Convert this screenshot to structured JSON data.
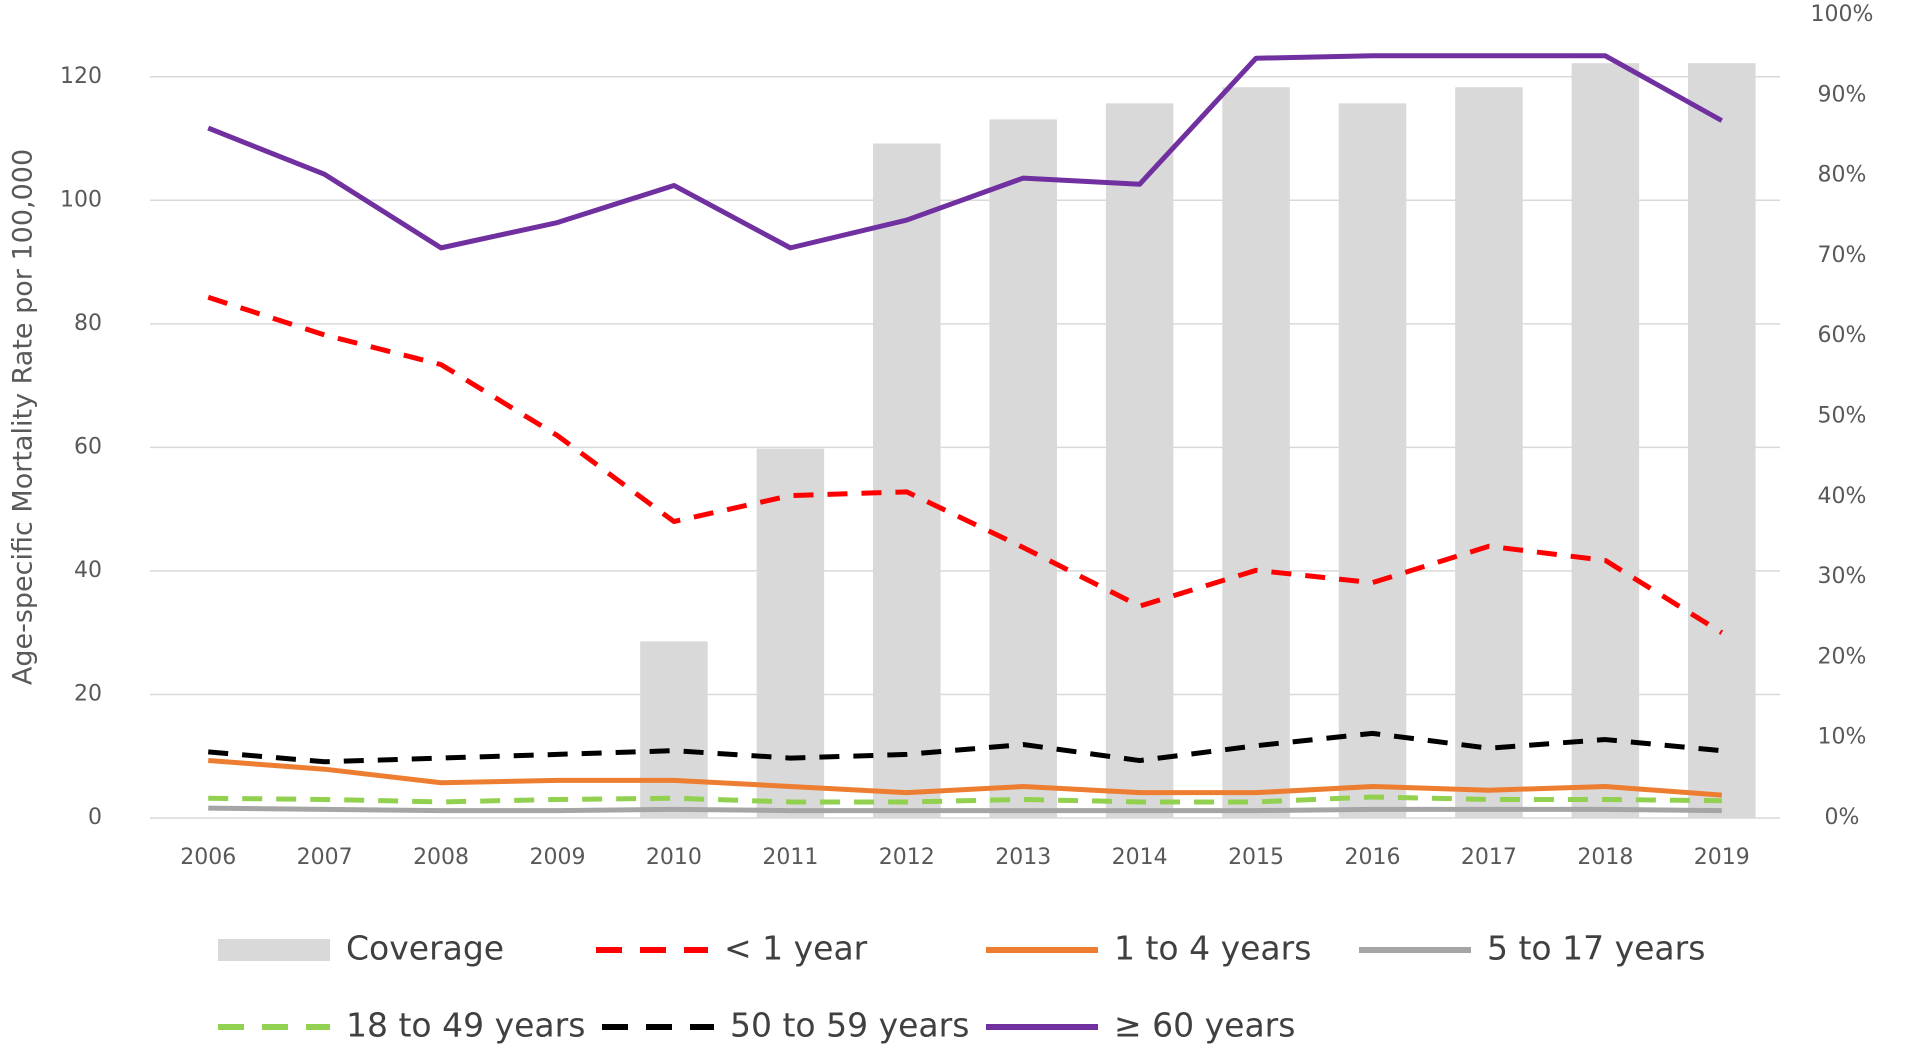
{
  "chart_data": {
    "type": "bar-line",
    "y_label": "Age-specific Mortality Rate por 100,000",
    "categories": [
      "2006",
      "2007",
      "2008",
      "2009",
      "2010",
      "2011",
      "2012",
      "2013",
      "2014",
      "2015",
      "2016",
      "2017",
      "2018",
      "2019"
    ],
    "ylim": [
      0,
      130
    ],
    "yticks": [
      0,
      20,
      40,
      60,
      80,
      100,
      120
    ],
    "y2lim": [
      0,
      100
    ],
    "y2ticks": [
      {
        "value": 0,
        "label": "0%"
      },
      {
        "value": 10,
        "label": "10%"
      },
      {
        "value": 20,
        "label": "20%"
      },
      {
        "value": 30,
        "label": "30%"
      },
      {
        "value": 40,
        "label": "40%"
      },
      {
        "value": 50,
        "label": "50%"
      },
      {
        "value": 60,
        "label": "60%"
      },
      {
        "value": 70,
        "label": "70%"
      },
      {
        "value": 80,
        "label": "80%"
      },
      {
        "value": 90,
        "label": "90%"
      },
      {
        "value": 100,
        "label": "100%"
      }
    ],
    "grid": true,
    "series": [
      {
        "name": "Coverage",
        "type": "bar",
        "axis": "y2",
        "color": "#d9d9d9",
        "values": [
          null,
          null,
          null,
          null,
          22,
          46,
          84,
          87,
          89,
          91,
          89,
          91,
          94,
          94
        ]
      },
      {
        "name": "< 1 year",
        "type": "line",
        "dashed": true,
        "color": "#ff0000",
        "values": [
          84.3,
          78.2,
          73.4,
          61.9,
          48,
          52.2,
          52.8,
          43.8,
          34.3,
          40.1,
          38.1,
          44,
          41.7,
          30
        ]
      },
      {
        "name": "1 to 4 years",
        "type": "line",
        "dashed": false,
        "color": "#ed7d31",
        "values": [
          9.3,
          7.9,
          5.7,
          6.1,
          6.1,
          5.1,
          4.1,
          5.1,
          4.1,
          4.1,
          5.1,
          4.5,
          5.1,
          3.7
        ]
      },
      {
        "name": "5 to 17 years",
        "type": "line",
        "dashed": false,
        "color": "#a5a5a5",
        "values": [
          1.6,
          1.4,
          1.2,
          1.2,
          1.4,
          1.2,
          1.2,
          1.2,
          1.2,
          1.2,
          1.4,
          1.4,
          1.4,
          1.2
        ]
      },
      {
        "name": "18 to 49 years",
        "type": "line",
        "dashed": true,
        "color": "#92d050",
        "values": [
          3.2,
          3,
          2.6,
          3,
          3.2,
          2.6,
          2.6,
          3,
          2.6,
          2.6,
          3.4,
          3,
          3,
          2.8
        ]
      },
      {
        "name": "50 to 59 years",
        "type": "line",
        "dashed": true,
        "color": "#000000",
        "values": [
          10.7,
          9.1,
          9.7,
          10.3,
          10.9,
          9.7,
          10.3,
          11.9,
          9.3,
          11.7,
          13.7,
          11.3,
          12.7,
          10.9
        ]
      },
      {
        "name": "≥ 60 years",
        "type": "line",
        "dashed": false,
        "color": "#7030a0",
        "values": [
          111.7,
          104.2,
          92.3,
          96.4,
          102.4,
          92.3,
          96.8,
          103.6,
          102.6,
          123,
          123.4,
          123.4,
          123.4,
          112.9
        ]
      }
    ]
  }
}
